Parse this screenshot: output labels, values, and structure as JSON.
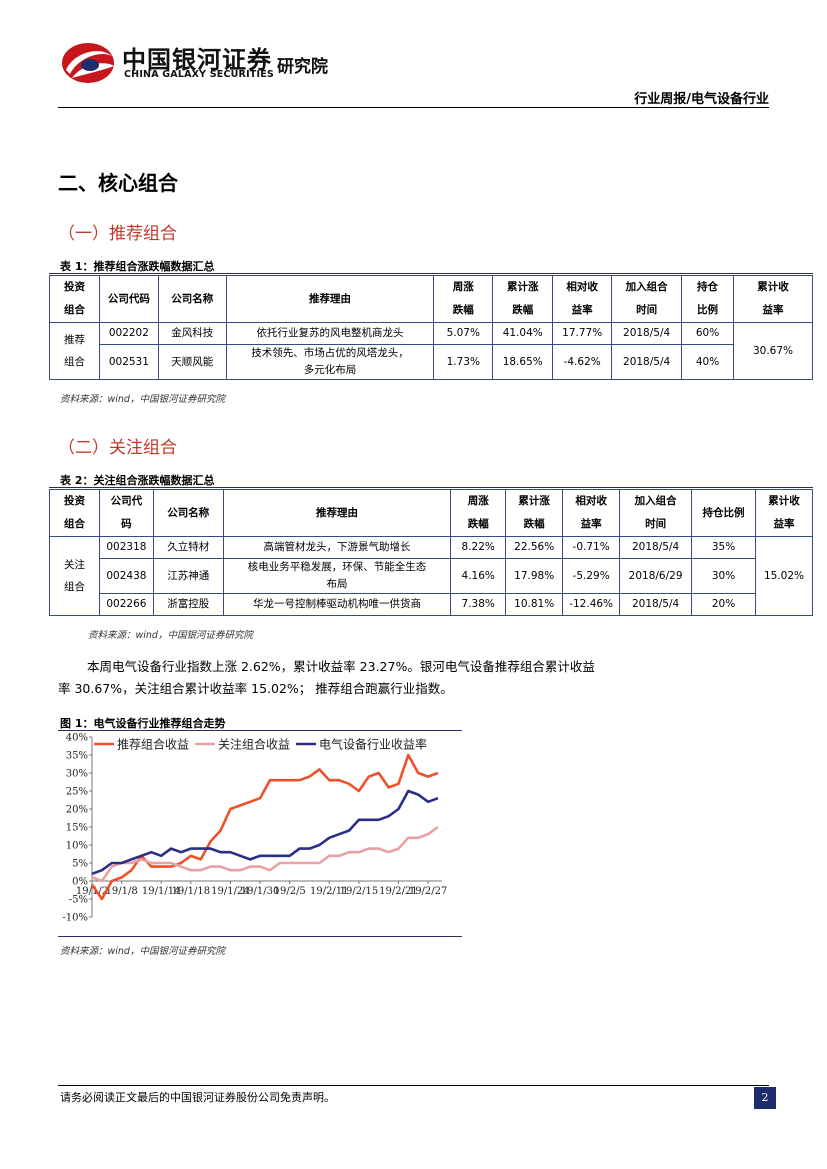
{
  "header": {
    "brand_cn": "中国银河证券",
    "brand_en": "CHINA GALAXY SECURITIES",
    "institute": "研究院",
    "report_type": "行业周报/电气设备行业"
  },
  "section_title": "二、核心组合",
  "sub1": "（一）推荐组合",
  "table1": {
    "title": "表 1：推荐组合涨跌幅数据汇总",
    "headers": [
      "投资\n组合",
      "公司代码",
      "公司名称",
      "推荐理由",
      "周涨\n跌幅",
      "累计涨\n跌幅",
      "相对收\n益率",
      "加入组合\n时间",
      "持仓\n比例",
      "累计收\n益率"
    ],
    "h": {
      "c0a": "投资",
      "c0b": "组合",
      "c1": "公司代码",
      "c2": "公司名称",
      "c3": "推荐理由",
      "c4a": "周涨",
      "c4b": "跌幅",
      "c5a": "累计涨",
      "c5b": "跌幅",
      "c6a": "相对收",
      "c6b": "益率",
      "c7a": "加入组合",
      "c7b": "时间",
      "c8a": "持仓",
      "c8b": "比例",
      "c9a": "累计收",
      "c9b": "益率"
    },
    "group": "推荐\n组合",
    "group_a": "推荐",
    "group_b": "组合",
    "rows": [
      {
        "code": "002202",
        "name": "金风科技",
        "reason": "依托行业复苏的风电整机商龙头",
        "reason_b": "",
        "week": "5.07%",
        "cum": "41.04%",
        "rel": "17.77%",
        "date": "2018/5/4",
        "weight": "60%"
      },
      {
        "code": "002531",
        "name": "天顺风能",
        "reason": "技术领先、市场占优的风塔龙头，",
        "reason_b": "多元化布局",
        "week": "1.73%",
        "cum": "18.65%",
        "rel": "-4.62%",
        "date": "2018/5/4",
        "weight": "40%"
      }
    ],
    "total": "30.67%",
    "source": "资料来源：wind，中国银河证券研究院"
  },
  "sub2": "（二）关注组合",
  "table2": {
    "title": "表 2：关注组合涨跌幅数据汇总",
    "h": {
      "c0a": "投资",
      "c0b": "组合",
      "c1a": "公司代",
      "c1b": "码",
      "c2": "公司名称",
      "c3": "推荐理由",
      "c4a": "周涨",
      "c4b": "跌幅",
      "c5a": "累计涨",
      "c5b": "跌幅",
      "c6a": "相对收",
      "c6b": "益率",
      "c7a": "加入组合",
      "c7b": "时间",
      "c8": "持仓比例",
      "c9a": "累计收",
      "c9b": "益率"
    },
    "group_a": "关注",
    "group_b": "组合",
    "rows": [
      {
        "code": "002318",
        "name": "久立特材",
        "reason": "高端管材龙头，下游景气助增长",
        "reason_b": "",
        "week": "8.22%",
        "cum": "22.56%",
        "rel": "-0.71%",
        "date": "2018/5/4",
        "weight": "35%"
      },
      {
        "code": "002438",
        "name": "江苏神通",
        "reason": "核电业务平稳发展，环保、节能全生态",
        "reason_b": "布局",
        "week": "4.16%",
        "cum": "17.98%",
        "rel": "-5.29%",
        "date": "2018/6/29",
        "weight": "30%"
      },
      {
        "code": "002266",
        "name": "浙富控股",
        "reason": "华龙一号控制棒驱动机构唯一供货商",
        "reason_b": "",
        "week": "7.38%",
        "cum": "10.81%",
        "rel": "-12.46%",
        "date": "2018/5/4",
        "weight": "20%"
      }
    ],
    "total": "15.02%",
    "source": "资料来源：wind，中国银河证券研究院"
  },
  "paragraph_1": "本周电气设备行业指数上涨 2.62%，累计收益率 23.27%。银河电气设备推荐组合累计收益",
  "paragraph_2": "率 30.67%，关注组合累计收益率 15.02%； 推荐组合跑赢行业指数。",
  "figure": {
    "title": "图 1：电气设备行业推荐组合走势",
    "source": "资料来源：wind，中国银河证券研究院"
  },
  "chart_data": {
    "type": "line",
    "title": "",
    "xlabel": "",
    "ylabel": "",
    "x_tick_labels": [
      "19/1/2",
      "19/1/8",
      "19/1/14",
      "19/1/18",
      "19/1/24",
      "19/1/30",
      "19/2/5",
      "19/2/11",
      "19/2/15",
      "19/2/21",
      "19/2/27"
    ],
    "y_tick_labels": [
      "40%",
      "35%",
      "30%",
      "25%",
      "20%",
      "15%",
      "10%",
      "5%",
      "0%",
      "-5%",
      "-10%"
    ],
    "ylim": [
      -10,
      40
    ],
    "legend_position": "top",
    "grid": false,
    "series": [
      {
        "name": "推荐组合收益",
        "color": "#f0502a",
        "values": [
          -1,
          -5,
          0,
          1,
          3,
          7,
          4,
          4,
          4,
          5,
          7,
          6,
          11,
          14,
          20,
          21,
          22,
          23,
          28,
          28,
          28,
          28,
          29,
          31,
          28,
          28,
          27,
          25,
          29,
          30,
          26,
          27,
          35,
          30,
          29,
          30
        ]
      },
      {
        "name": "关注组合收益",
        "color": "#e8a2a4",
        "values": [
          1,
          0,
          4,
          5,
          5,
          6,
          5,
          5,
          5,
          4,
          3,
          3,
          4,
          4,
          3,
          3,
          4,
          4,
          3,
          5,
          5,
          5,
          5,
          5,
          7,
          7,
          8,
          8,
          9,
          9,
          8,
          9,
          12,
          12,
          13,
          15
        ]
      },
      {
        "name": "电气设备行业收益率",
        "color": "#2a2f86",
        "values": [
          2,
          3,
          5,
          5,
          6,
          7,
          8,
          7,
          9,
          8,
          9,
          9,
          9,
          8,
          8,
          7,
          6,
          7,
          7,
          7,
          7,
          9,
          9,
          10,
          12,
          13,
          14,
          17,
          17,
          17,
          18,
          20,
          25,
          24,
          22,
          23
        ]
      }
    ]
  },
  "footer": {
    "disclaimer": "请务必阅读正文最后的中国银河证券股份公司免责声明。",
    "page": "2"
  }
}
